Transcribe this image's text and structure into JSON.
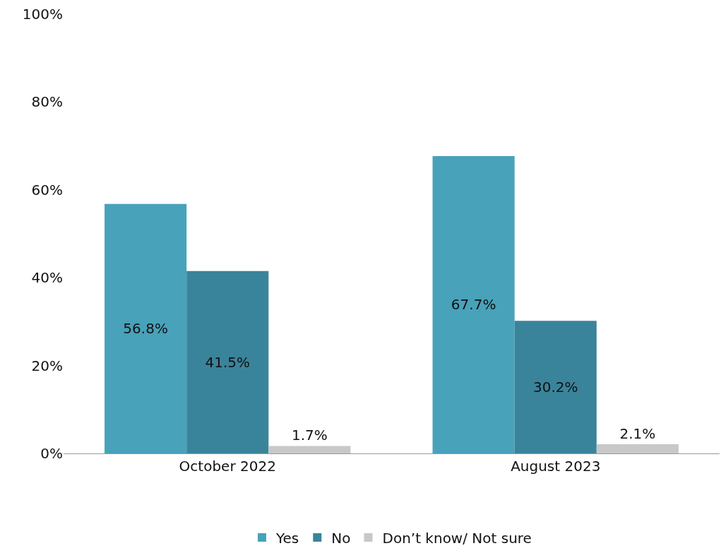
{
  "chart_data": {
    "type": "bar",
    "categories": [
      "October 2022",
      "August 2023"
    ],
    "series": [
      {
        "name": "Yes",
        "color": "#48a2ba",
        "values": [
          56.8,
          67.7
        ],
        "value_labels": [
          "56.8%",
          "67.7%"
        ]
      },
      {
        "name": "No",
        "color": "#3a849b",
        "values": [
          41.5,
          30.2
        ],
        "value_labels": [
          "41.5%",
          "30.2%"
        ]
      },
      {
        "name": "Don’t know/ Not sure",
        "color": "#c8c8c8",
        "values": [
          1.7,
          2.1
        ],
        "value_labels": [
          "1.7%",
          "2.1%"
        ]
      }
    ],
    "ylim": [
      0,
      100
    ],
    "yticks": [
      {
        "value": 0,
        "label": "0%"
      },
      {
        "value": 20,
        "label": "20%"
      },
      {
        "value": 40,
        "label": "40%"
      },
      {
        "value": 60,
        "label": "60%"
      },
      {
        "value": 80,
        "label": "80%"
      },
      {
        "value": 100,
        "label": "100%"
      }
    ],
    "legend": "bottom"
  }
}
